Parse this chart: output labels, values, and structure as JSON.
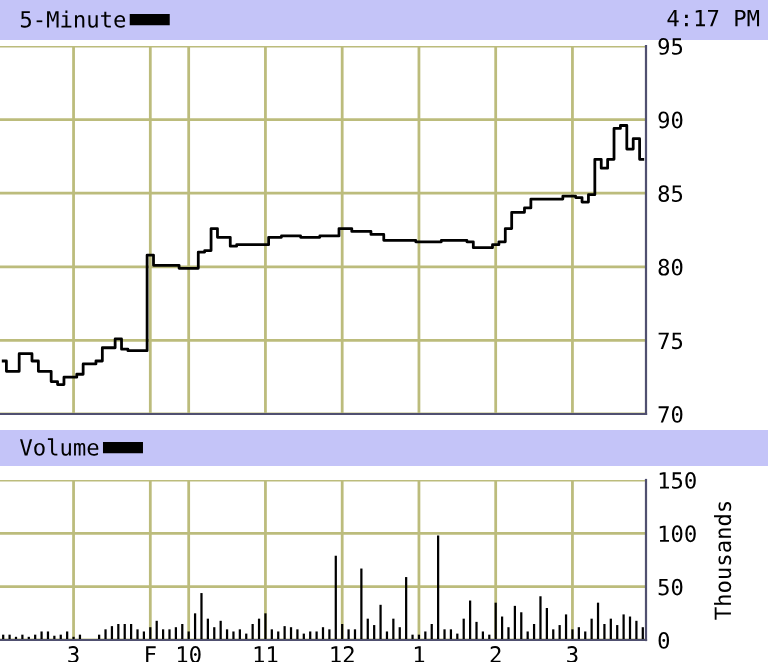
{
  "chart_data": [
    {
      "type": "line",
      "title": "4:17 PM",
      "legend": "top left",
      "grid": true,
      "tick_labels": "y",
      "categories": [
        null,
        null,
        null,
        null,
        null,
        null,
        null,
        null,
        null,
        null,
        null,
        null,
        null,
        null,
        null,
        null,
        null,
        null,
        null,
        null,
        null,
        null,
        null,
        null,
        null,
        null,
        null,
        null,
        null,
        null,
        null,
        null,
        null,
        null,
        null,
        null,
        null,
        null,
        null,
        null,
        null,
        null,
        null,
        null,
        null,
        null,
        null,
        null,
        null,
        null,
        null,
        null,
        null,
        null,
        null,
        null,
        null,
        null,
        null,
        null,
        null,
        null,
        null,
        null,
        null,
        null,
        null,
        null,
        null,
        null,
        null,
        null,
        null,
        null,
        null,
        null,
        null,
        null,
        null,
        null,
        null,
        null,
        null,
        null,
        null,
        null,
        null,
        null,
        null,
        null,
        null,
        null,
        null,
        null,
        null,
        null,
        null,
        null,
        null,
        null,
        null
      ],
      "ylim": [
        70,
        95
      ],
      "yticks": [
        70,
        75,
        80,
        85,
        90,
        95
      ],
      "series": [
        {
          "name": "5-Minute",
          "color": "#000000",
          "values": [
            73.6,
            72.9,
            72.9,
            74.1,
            74.1,
            73.6,
            72.9,
            72.9,
            72.2,
            72.0,
            72.5,
            72.5,
            72.7,
            73.4,
            73.4,
            73.6,
            74.5,
            74.5,
            75.1,
            74.4,
            74.3,
            74.3,
            74.3,
            80.8,
            80.1,
            80.1,
            80.1,
            80.1,
            79.9,
            79.9,
            79.9,
            81.0,
            81.1,
            82.6,
            82.0,
            82.0,
            81.4,
            81.5,
            81.5,
            81.5,
            81.5,
            81.5,
            82.0,
            82.0,
            82.1,
            82.1,
            82.1,
            82.0,
            82.0,
            82.0,
            82.1,
            82.1,
            82.1,
            82.6,
            82.6,
            82.4,
            82.4,
            82.4,
            82.2,
            82.2,
            81.8,
            81.8,
            81.8,
            81.8,
            81.8,
            81.7,
            81.7,
            81.7,
            81.7,
            81.8,
            81.8,
            81.8,
            81.8,
            81.7,
            81.3,
            81.3,
            81.3,
            81.5,
            81.7,
            82.6,
            83.7,
            83.7,
            84.0,
            84.6,
            84.6,
            84.6,
            84.6,
            84.6,
            84.8,
            84.8,
            84.7,
            84.4,
            84.9,
            87.3,
            86.7,
            87.3,
            89.4,
            89.6,
            88.0,
            88.7,
            87.3
          ]
        }
      ]
    },
    {
      "type": "bar",
      "legend": "top left",
      "grid": true,
      "ylabel": "Thousands",
      "categories": [
        null,
        null,
        null,
        null,
        null,
        null,
        null,
        null,
        null,
        null,
        null,
        "3",
        null,
        null,
        null,
        null,
        null,
        null,
        null,
        null,
        null,
        null,
        null,
        "F",
        null,
        null,
        null,
        null,
        null,
        "10",
        null,
        null,
        null,
        null,
        null,
        null,
        null,
        null,
        null,
        null,
        null,
        "11",
        null,
        null,
        null,
        null,
        null,
        null,
        null,
        null,
        null,
        null,
        null,
        "12",
        null,
        null,
        null,
        null,
        null,
        null,
        null,
        null,
        null,
        null,
        null,
        "1",
        null,
        null,
        null,
        null,
        null,
        null,
        null,
        null,
        null,
        null,
        null,
        "2",
        null,
        null,
        null,
        null,
        null,
        null,
        null,
        null,
        null,
        null,
        null,
        "3",
        null,
        null,
        null,
        null,
        null,
        null,
        null,
        null,
        null,
        null,
        null
      ],
      "ylim": [
        0,
        150
      ],
      "yticks": [
        0,
        50,
        100,
        150
      ],
      "series": [
        {
          "name": "Volume",
          "color": "#000000",
          "values": [
            5,
            5,
            3,
            5,
            3,
            5,
            8,
            8,
            4,
            5,
            8,
            3,
            5,
            null,
            null,
            5,
            10,
            13,
            15,
            15,
            15,
            10,
            8,
            12,
            18,
            10,
            10,
            12,
            15,
            8,
            25,
            44,
            20,
            12,
            18,
            10,
            8,
            10,
            6,
            15,
            20,
            25,
            10,
            8,
            13,
            12,
            10,
            6,
            8,
            8,
            12,
            10,
            79,
            15,
            10,
            10,
            67,
            20,
            14,
            33,
            8,
            20,
            12,
            59,
            5,
            5,
            8,
            15,
            98,
            10,
            10,
            6,
            20,
            37,
            17,
            8,
            5,
            35,
            22,
            12,
            32,
            26,
            8,
            15,
            41,
            30,
            10,
            14,
            24,
            10,
            12,
            8,
            20,
            35,
            15,
            20,
            14,
            24,
            22,
            18,
            12
          ]
        }
      ]
    }
  ]
}
